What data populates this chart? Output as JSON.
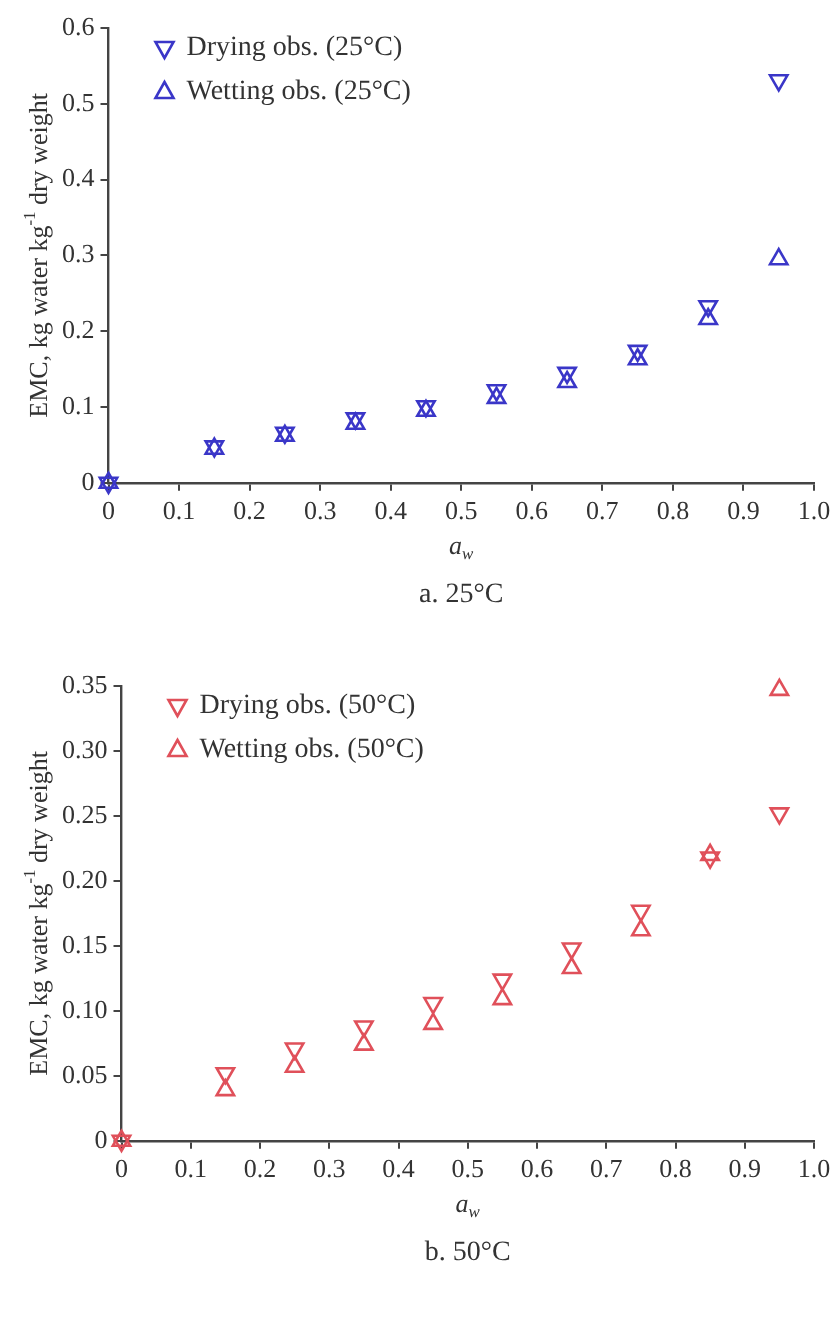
{
  "chart_data": [
    {
      "type": "scatter",
      "xlabel": "a$_{w}$",
      "ylabel": "EMC, kg water kg$^{-1}$ dry weight",
      "annotations": [
        "a. 25°C"
      ],
      "x": [
        0,
        0.15,
        0.25,
        0.35,
        0.45,
        0.55,
        0.65,
        0.75,
        0.85,
        0.95
      ],
      "xlim": [
        0,
        1.0
      ],
      "xticks": [
        0,
        0.1,
        0.2,
        0.3,
        0.4,
        0.5,
        0.6,
        0.7,
        0.8,
        0.9,
        {
          "value": 1.0,
          "label": "1.0"
        }
      ],
      "ylim": [
        0,
        0.6
      ],
      "yticks": [
        0,
        0.1,
        0.2,
        0.3,
        0.4,
        0.5,
        0.6
      ],
      "grid": false,
      "legend": "top left",
      "series": [
        {
          "name": "Drying obs. (25°C)",
          "color": "#3a36c8",
          "marker": "triangle_down",
          "values": [
            0,
            0.048,
            0.066,
            0.085,
            0.101,
            0.122,
            0.145,
            0.174,
            0.233,
            0.531
          ]
        },
        {
          "name": "Wetting obs. (25°C)",
          "color": "#3a36c8",
          "marker": "triangle",
          "values": [
            0,
            0.045,
            0.062,
            0.078,
            0.095,
            0.112,
            0.133,
            0.163,
            0.216,
            0.295
          ]
        }
      ]
    },
    {
      "type": "scatter",
      "xlabel": "a$_{w}$",
      "ylabel": "EMC, kg water kg$^{-1}$ dry weight",
      "annotations": [
        "b. 50°C"
      ],
      "x": [
        0,
        0.15,
        0.25,
        0.35,
        0.45,
        0.55,
        0.65,
        0.75,
        0.85,
        0.95
      ],
      "xlim": [
        0,
        1.0
      ],
      "xticks": [
        0,
        0.1,
        0.2,
        0.3,
        0.4,
        0.5,
        0.6,
        0.7,
        0.8,
        0.9,
        {
          "value": 1.0,
          "label": "1.0"
        }
      ],
      "ylim": [
        0,
        0.35
      ],
      "yticks": [
        0,
        {
          "value": 0.05,
          "label": "0.05"
        },
        {
          "value": 0.1,
          "label": "0.10"
        },
        {
          "value": 0.15,
          "label": "0.15"
        },
        {
          "value": 0.2,
          "label": "0.20"
        },
        {
          "value": 0.25,
          "label": "0.25"
        },
        {
          "value": 0.3,
          "label": "0.30"
        },
        {
          "value": 0.35,
          "label": "0.35"
        }
      ],
      "grid": false,
      "legend": "top left",
      "series": [
        {
          "name": "Drying obs. (50°C)",
          "color": "#e0505a",
          "marker": "triangle_down",
          "values": [
            0,
            0.052,
            0.071,
            0.088,
            0.106,
            0.124,
            0.148,
            0.177,
            0.218,
            0.252
          ]
        },
        {
          "name": "Wetting obs. (50°C)",
          "color": "#e0505a",
          "marker": "triangle",
          "values": [
            0,
            0.039,
            0.057,
            0.074,
            0.09,
            0.109,
            0.133,
            0.162,
            0.22,
            0.347
          ]
        }
      ]
    }
  ]
}
